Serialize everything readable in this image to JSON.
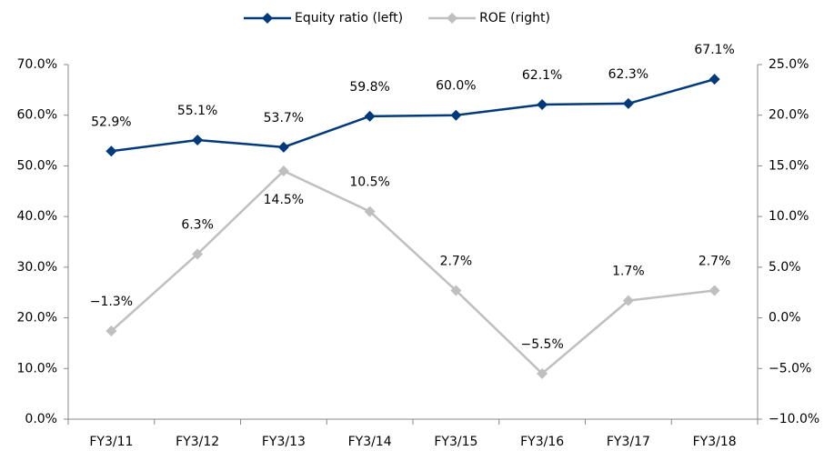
{
  "chart_data": {
    "type": "line",
    "categories": [
      "FY3/11",
      "FY3/12",
      "FY3/13",
      "FY3/14",
      "FY3/15",
      "FY3/16",
      "FY3/17",
      "FY3/18"
    ],
    "series": [
      {
        "name": "Equity ratio (left)",
        "color": "#003a7a",
        "axis": "y",
        "marker": "diamond",
        "values": [
          52.9,
          55.1,
          53.7,
          59.8,
          60.0,
          62.1,
          62.3,
          67.1
        ],
        "value_labels": [
          "52.9%",
          "55.1%",
          "53.7%",
          "59.8%",
          "60.0%",
          "62.1%",
          "62.3%",
          "67.1%"
        ]
      },
      {
        "name": "ROE (right)",
        "color": "#bfbfbf",
        "axis": "y2",
        "marker": "diamond",
        "values": [
          -1.3,
          6.3,
          14.5,
          10.5,
          2.7,
          -5.5,
          1.7,
          2.7
        ],
        "value_labels": [
          "−1.3%",
          "6.3%",
          "14.5%",
          "10.5%",
          "2.7%",
          "−5.5%",
          "1.7%",
          "2.7%"
        ]
      }
    ],
    "ylim": [
      0,
      70
    ],
    "yticks": [
      {
        "value": 0,
        "label": "0.0%"
      },
      {
        "value": 10,
        "label": "10.0%"
      },
      {
        "value": 20,
        "label": "20.0%"
      },
      {
        "value": 30,
        "label": "30.0%"
      },
      {
        "value": 40,
        "label": "40.0%"
      },
      {
        "value": 50,
        "label": "50.0%"
      },
      {
        "value": 60,
        "label": "60.0%"
      },
      {
        "value": 70,
        "label": "70.0%"
      }
    ],
    "y2lim": [
      -10,
      25
    ],
    "y2ticks": [
      {
        "value": -10,
        "label": "−10.0%"
      },
      {
        "value": -5,
        "label": "−5.0%"
      },
      {
        "value": 0,
        "label": "0.0%"
      },
      {
        "value": 5,
        "label": "5.0%"
      },
      {
        "value": 10,
        "label": "10.0%"
      },
      {
        "value": 15,
        "label": "15.0%"
      },
      {
        "value": 20,
        "label": "20.0%"
      },
      {
        "value": 25,
        "label": "25.0%"
      }
    ],
    "legend": "top"
  }
}
